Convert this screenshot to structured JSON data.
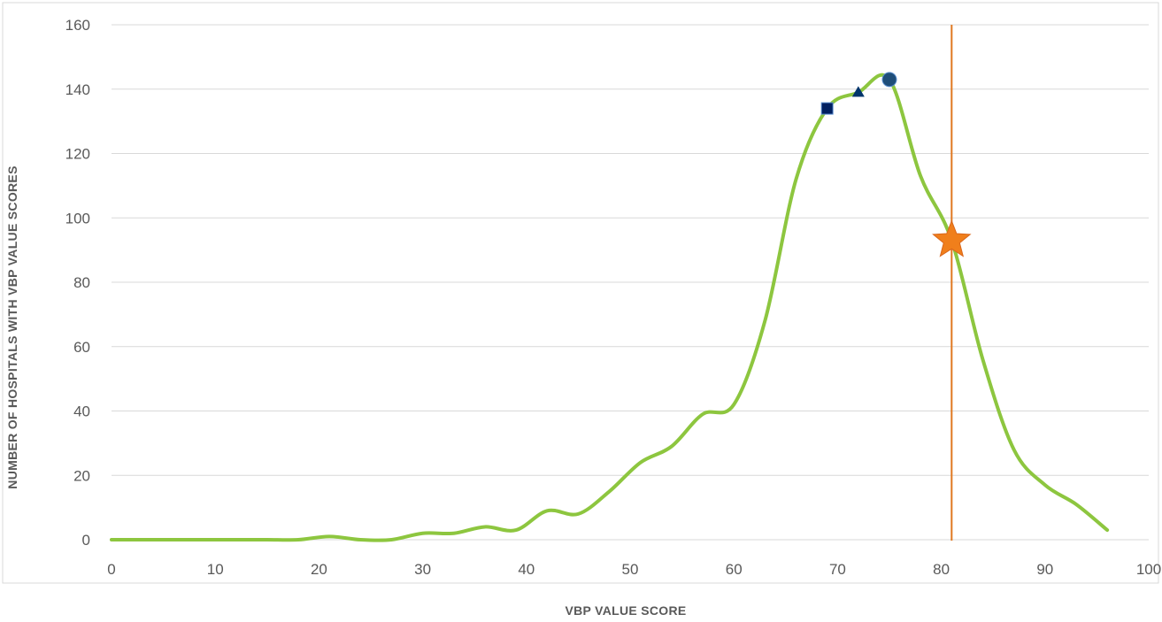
{
  "chart_data": {
    "type": "line",
    "title": "",
    "xlabel": "VBP VALUE SCORE",
    "ylabel": "NUMBER OF HOSPITALS WITH VBP VALUE SCORES",
    "xlim": [
      0,
      100
    ],
    "ylim": [
      0,
      160
    ],
    "x_ticks": [
      0,
      10,
      20,
      30,
      40,
      50,
      60,
      70,
      80,
      90,
      100
    ],
    "y_ticks": [
      0,
      20,
      40,
      60,
      80,
      100,
      120,
      140,
      160
    ],
    "x_tick_labels": [
      "0",
      "10",
      "20",
      "30",
      "40",
      "50",
      "60",
      "70",
      "80",
      "90",
      "100"
    ],
    "y_tick_labels": [
      "0",
      "20",
      "40",
      "60",
      "80",
      "100",
      "120",
      "140",
      "160"
    ],
    "grid": "horizontal",
    "series": [
      {
        "color": "#8dc63f",
        "x": [
          0,
          3,
          6,
          9,
          12,
          15,
          18,
          21,
          24,
          27,
          30,
          33,
          36,
          39,
          42,
          45,
          48,
          51,
          54,
          57,
          60,
          63,
          66,
          69,
          72,
          75,
          78,
          81,
          84,
          87,
          90,
          93,
          96
        ],
        "y": [
          0,
          0,
          0,
          0,
          0,
          0,
          0,
          1,
          0,
          0,
          2,
          2,
          4,
          3,
          9,
          8,
          15,
          24,
          29,
          39,
          42,
          68,
          112,
          134,
          139,
          143,
          113,
          93,
          56,
          28,
          17,
          11,
          3
        ]
      }
    ],
    "markers": [
      {
        "shape": "square",
        "x": 69,
        "y": 134,
        "color": "#002060"
      },
      {
        "shape": "triangle",
        "x": 72,
        "y": 139,
        "color": "#00356b"
      },
      {
        "shape": "circle",
        "x": 75,
        "y": 143,
        "color": "#1f4e79"
      },
      {
        "shape": "star",
        "x": 81,
        "y": 93,
        "color": "#f07f1b"
      }
    ],
    "reference_lines": [
      {
        "orientation": "vertical",
        "x": 81,
        "color": "#e07820"
      }
    ]
  }
}
